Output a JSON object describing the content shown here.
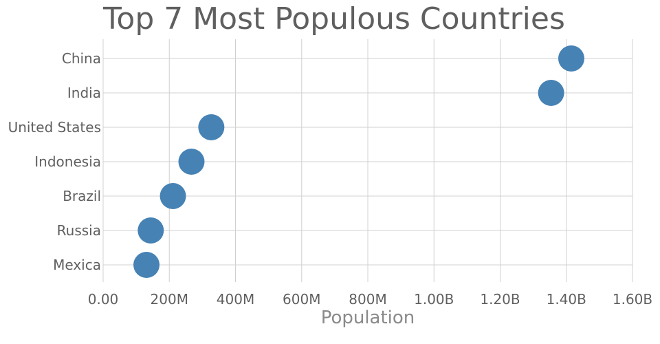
{
  "chart_data": {
    "type": "scatter",
    "title": "Top 7 Most Populous Countries",
    "xlabel": "Population",
    "ylabel": "",
    "xlim": [
      0,
      1600000000
    ],
    "xticks": [
      0,
      200000000,
      400000000,
      600000000,
      800000000,
      1000000000,
      1200000000,
      1400000000,
      1600000000
    ],
    "xtick_labels": [
      "0.00",
      "200M",
      "400M",
      "600M",
      "800M",
      "1.00B",
      "1.20B",
      "1.40B",
      "1.60B"
    ],
    "categories": [
      "China",
      "India",
      "United States",
      "Indonesia",
      "Brazil",
      "Russia",
      "Mexica"
    ],
    "values": [
      1415000000,
      1354000000,
      327000000,
      267000000,
      211000000,
      144000000,
      131000000
    ],
    "grid": true,
    "colors": {
      "marker": "#4682b4",
      "grid": "#d0d0d0",
      "text": "#5f5f5f"
    }
  }
}
